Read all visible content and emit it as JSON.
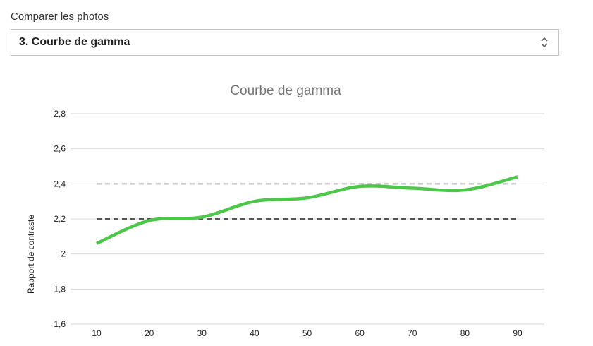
{
  "control": {
    "label": "Comparer les photos",
    "selected": "3. Courbe de gamma"
  },
  "chart_data": {
    "type": "line",
    "title": "Courbe de gamma",
    "xlabel": "",
    "ylabel": "Rapport de contraste",
    "x": [
      10,
      20,
      30,
      40,
      50,
      60,
      70,
      80,
      90
    ],
    "series": [
      {
        "values": [
          2.06,
          2.19,
          2.21,
          2.3,
          2.32,
          2.385,
          2.375,
          2.365,
          2.44
        ],
        "color": "#4cc74a"
      }
    ],
    "reference_lines": [
      {
        "y": 2.4,
        "color": "#b0b0b0",
        "style": "dashed"
      },
      {
        "y": 2.2,
        "color": "#555555",
        "style": "dashed"
      }
    ],
    "ylim": [
      1.6,
      2.8
    ],
    "yticks": [
      "1,6",
      "1,8",
      "2",
      "2,2",
      "2,4",
      "2,6",
      "2,8"
    ],
    "xticks": [
      "10",
      "20",
      "30",
      "40",
      "50",
      "60",
      "70",
      "80",
      "90"
    ],
    "grid": true
  }
}
